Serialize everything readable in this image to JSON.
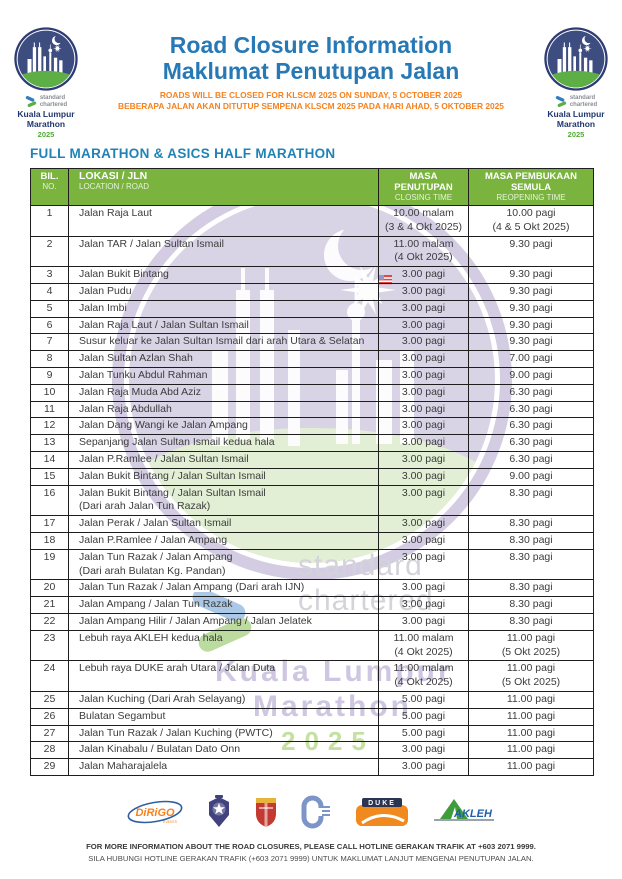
{
  "header": {
    "title_line1": "Road Closure Information",
    "title_line2": "Maklumat Penutupan Jalan",
    "subtitle_line1": "ROADS WILL BE CLOSED FOR KLSCM 2025 ON SUNDAY, 5 OCTOBER 2025",
    "subtitle_line2": "BEBERAPA JALAN AKAN DITUTUP SEMPENA KLSCM 2025 PADA HARI AHAD, 5 OKTOBER 2025",
    "logo": {
      "sc_line1": "standard",
      "sc_line2": "chartered",
      "event_line1": "Kuala Lumpur",
      "event_line2": "Marathon",
      "year": "2025"
    }
  },
  "section_title": "FULL MARATHON & ASICS HALF MARATHON",
  "table": {
    "headers": {
      "col1_main": "BIL.",
      "col1_sub": "NO.",
      "col2_main": "LOKASI / JLN",
      "col2_sub": "LOCATION / ROAD",
      "col3_main": "MASA PENUTUPAN",
      "col3_sub": "CLOSING TIME",
      "col4_main": "MASA PEMBUKAAN SEMULA",
      "col4_sub": "REOPENING TIME"
    },
    "rows": [
      {
        "no": "1",
        "location": [
          "Jalan Raja Laut"
        ],
        "closing": [
          "10.00 malam",
          "(3 & 4 Okt 2025)"
        ],
        "reopening": [
          "10.00 pagi",
          "(4 & 5 Okt 2025)"
        ]
      },
      {
        "no": "2",
        "location": [
          "Jalan TAR / Jalan Sultan Ismail"
        ],
        "closing": [
          "11.00 malam",
          "(4 Okt 2025)"
        ],
        "reopening": [
          "9.30 pagi"
        ]
      },
      {
        "no": "3",
        "location": [
          "Jalan Bukit Bintang"
        ],
        "closing": [
          "3.00 pagi"
        ],
        "reopening": [
          "9.30 pagi"
        ]
      },
      {
        "no": "4",
        "location": [
          "Jalan Pudu"
        ],
        "closing": [
          "3.00 pagi"
        ],
        "reopening": [
          "9.30 pagi"
        ]
      },
      {
        "no": "5",
        "location": [
          "Jalan Imbi"
        ],
        "closing": [
          "3.00 pagi"
        ],
        "reopening": [
          "9.30 pagi"
        ]
      },
      {
        "no": "6",
        "location": [
          "Jalan Raja Laut / Jalan Sultan Ismail"
        ],
        "closing": [
          "3.00 pagi"
        ],
        "reopening": [
          "9.30 pagi"
        ]
      },
      {
        "no": "7",
        "location": [
          "Susur keluar ke Jalan Sultan Ismail dari arah Utara & Selatan"
        ],
        "closing": [
          "3.00 pagi"
        ],
        "reopening": [
          "9.30 pagi"
        ]
      },
      {
        "no": "8",
        "location": [
          "Jalan Sultan Azlan Shah"
        ],
        "closing": [
          "3.00 pagi"
        ],
        "reopening": [
          "7.00 pagi"
        ]
      },
      {
        "no": "9",
        "location": [
          "Jalan Tunku Abdul Rahman"
        ],
        "closing": [
          "3.00 pagi"
        ],
        "reopening": [
          "9.00 pagi"
        ]
      },
      {
        "no": "10",
        "location": [
          "Jalan Raja Muda Abd Aziz"
        ],
        "closing": [
          "3.00 pagi"
        ],
        "reopening": [
          "6.30 pagi"
        ]
      },
      {
        "no": "11",
        "location": [
          "Jalan Raja Abdullah"
        ],
        "closing": [
          "3.00 pagi"
        ],
        "reopening": [
          "6.30 pagi"
        ]
      },
      {
        "no": "12",
        "location": [
          "Jalan Dang Wangi ke Jalan Ampang"
        ],
        "closing": [
          "3.00 pagi"
        ],
        "reopening": [
          "6.30 pagi"
        ]
      },
      {
        "no": "13",
        "location": [
          "Sepanjang Jalan Sultan Ismail kedua hala"
        ],
        "closing": [
          "3.00 pagi"
        ],
        "reopening": [
          "6.30 pagi"
        ]
      },
      {
        "no": "14",
        "location": [
          "Jalan P.Ramlee / Jalan Sultan Ismail"
        ],
        "closing": [
          "3.00 pagi"
        ],
        "reopening": [
          "6.30 pagi"
        ]
      },
      {
        "no": "15",
        "location": [
          "Jalan Bukit Bintang / Jalan Sultan Ismail"
        ],
        "closing": [
          "3.00 pagi"
        ],
        "reopening": [
          "9.00 pagi"
        ]
      },
      {
        "no": "16",
        "location": [
          "Jalan Bukit Bintang / Jalan Sultan Ismail",
          "(Dari arah Jalan Tun Razak)"
        ],
        "closing": [
          "3.00 pagi"
        ],
        "reopening": [
          "8.30 pagi"
        ]
      },
      {
        "no": "17",
        "location": [
          "Jalan Perak / Jalan Sultan Ismail"
        ],
        "closing": [
          "3.00 pagi"
        ],
        "reopening": [
          "8.30 pagi"
        ]
      },
      {
        "no": "18",
        "location": [
          "Jalan P.Ramlee / Jalan Ampang"
        ],
        "closing": [
          "3.00 pagi"
        ],
        "reopening": [
          "8.30 pagi"
        ]
      },
      {
        "no": "19",
        "location": [
          "Jalan Tun Razak / Jalan Ampang",
          "(Dari arah Bulatan Kg. Pandan)"
        ],
        "closing": [
          "3.00 pagi"
        ],
        "reopening": [
          "8.30 pagi"
        ]
      },
      {
        "no": "20",
        "location": [
          "Jalan Tun Razak / Jalan Ampang (Dari arah IJN)"
        ],
        "closing": [
          "3.00 pagi"
        ],
        "reopening": [
          "8.30 pagi"
        ]
      },
      {
        "no": "21",
        "location": [
          "Jalan Ampang / Jalan Tun Razak"
        ],
        "closing": [
          "3.00 pagi"
        ],
        "reopening": [
          "8.30 pagi"
        ]
      },
      {
        "no": "22",
        "location": [
          "Jalan Ampang Hilir / Jalan Ampang / Jalan Jelatek"
        ],
        "closing": [
          "3.00 pagi"
        ],
        "reopening": [
          "8.30 pagi"
        ]
      },
      {
        "no": "23",
        "location": [
          "Lebuh raya AKLEH kedua hala"
        ],
        "closing": [
          "11.00 malam",
          "(4 Okt 2025)"
        ],
        "reopening": [
          "11.00 pagi",
          "(5 Okt 2025)"
        ]
      },
      {
        "no": "24",
        "location": [
          "Lebuh raya DUKE arah Utara / Jalan Duta"
        ],
        "closing": [
          "11.00 malam",
          "(4 Okt 2025)"
        ],
        "reopening": [
          "11.00 pagi",
          "(5 Okt 2025)"
        ]
      },
      {
        "no": "25",
        "location": [
          "Jalan Kuching (Dari Arah Selayang)"
        ],
        "closing": [
          "5.00 pagi"
        ],
        "reopening": [
          "11.00 pagi"
        ]
      },
      {
        "no": "26",
        "location": [
          "Bulatan Segambut"
        ],
        "closing": [
          "5.00 pagi"
        ],
        "reopening": [
          "11.00 pagi"
        ]
      },
      {
        "no": "27",
        "location": [
          "Jalan Tun Razak / Jalan Kuching (PWTC)"
        ],
        "closing": [
          "5.00 pagi"
        ],
        "reopening": [
          "11.00 pagi"
        ]
      },
      {
        "no": "28",
        "location": [
          "Jalan Kinabalu / Bulatan Dato Onn"
        ],
        "closing": [
          "3.00 pagi"
        ],
        "reopening": [
          "11.00 pagi"
        ]
      },
      {
        "no": "29",
        "location": [
          "Jalan Maharajalela"
        ],
        "closing": [
          "3.00 pagi"
        ],
        "reopening": [
          "11.00 pagi"
        ]
      }
    ]
  },
  "watermark": {
    "sc_line1": "standard",
    "sc_line2": "chartered",
    "event_line1": "Kuala Lumpur",
    "event_line2": "Marathon",
    "year": "2025"
  },
  "footer": {
    "dirigo_label": "DiRiGO",
    "dirigo_sub": "EVENTS",
    "duke_label": "DUKE",
    "akleh_label": "AKLEH",
    "info_line1": "FOR MORE INFORMATION ABOUT THE ROAD CLOSURES, PLEASE CALL HOTLINE GERAKAN TRAFIK AT +603 2071 9999.",
    "info_line2": "SILA HUBUNGI HOTLINE GERAKAN TRAFIK (+603 2071 9999) UNTUK MAKLUMAT LANJUT MENGENAI PENUTUPAN JALAN."
  },
  "colors": {
    "accent_blue": "#2779b5",
    "accent_orange": "#f5821f",
    "table_header_green": "#7ab43e",
    "logo_navy": "#2d3c74",
    "logo_green": "#5dae45",
    "watermark_lavender": "#d8d2e5"
  }
}
